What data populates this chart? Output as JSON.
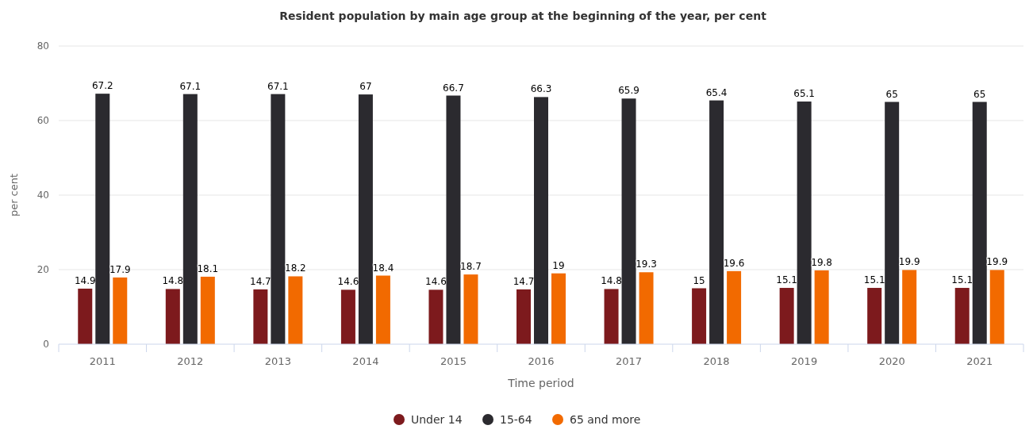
{
  "chart_data": {
    "type": "bar",
    "title": "Resident population by main age group at the beginning of the year, per cent",
    "xlabel": "Time period",
    "ylabel": "per cent",
    "categories": [
      "2011",
      "2012",
      "2013",
      "2014",
      "2015",
      "2016",
      "2017",
      "2018",
      "2019",
      "2020",
      "2021"
    ],
    "series": [
      {
        "name": "Under 14",
        "color": "#7d1a1d",
        "values": [
          14.9,
          14.8,
          14.7,
          14.6,
          14.6,
          14.7,
          14.8,
          15,
          15.1,
          15.1,
          15.1
        ]
      },
      {
        "name": "15-64",
        "color": "#2b2a2f",
        "values": [
          67.2,
          67.1,
          67.1,
          67,
          66.7,
          66.3,
          65.9,
          65.4,
          65.1,
          65,
          65
        ]
      },
      {
        "name": "65 and more",
        "color": "#f26a00",
        "values": [
          17.9,
          18.1,
          18.2,
          18.4,
          18.7,
          19,
          19.3,
          19.6,
          19.8,
          19.9,
          19.9
        ]
      }
    ],
    "ylim": [
      0,
      80
    ],
    "yticks": [
      0,
      20,
      40,
      60,
      80
    ],
    "grid": "y",
    "legend": "bottom",
    "data_labels": true
  }
}
